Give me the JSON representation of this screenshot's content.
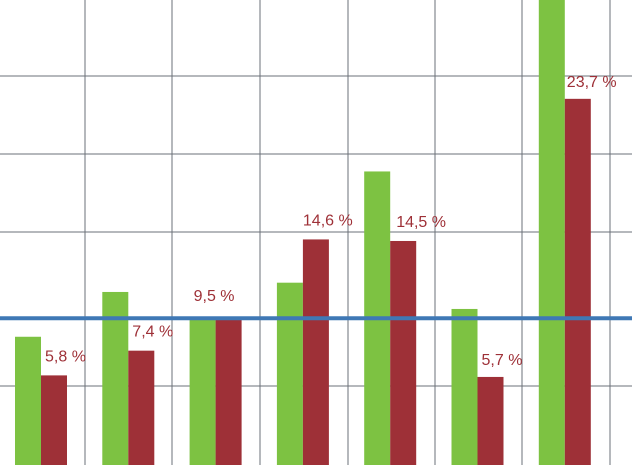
{
  "chart_data": {
    "type": "bar",
    "categories": [
      "",
      "",
      "",
      "",
      "",
      "",
      ""
    ],
    "series": [
      {
        "color": "#7dc242",
        "values": [
          8.3,
          11.2,
          9.5,
          11.8,
          19.0,
          10.1,
          30.5
        ]
      },
      {
        "color": "#9e3037",
        "values": [
          5.8,
          7.4,
          9.5,
          14.6,
          14.5,
          5.7,
          23.7
        ]
      }
    ],
    "data_labels": [
      "5,8 %",
      "7,4 %",
      "9,5 %",
      "14,6 %",
      "14,5 %",
      "5,7 %",
      "23,7 %"
    ],
    "reference_line": {
      "value": 9.5,
      "color": "#3f78b5"
    },
    "label_color": "#9e3037",
    "ylim": [
      0,
      30
    ],
    "grid": true
  }
}
